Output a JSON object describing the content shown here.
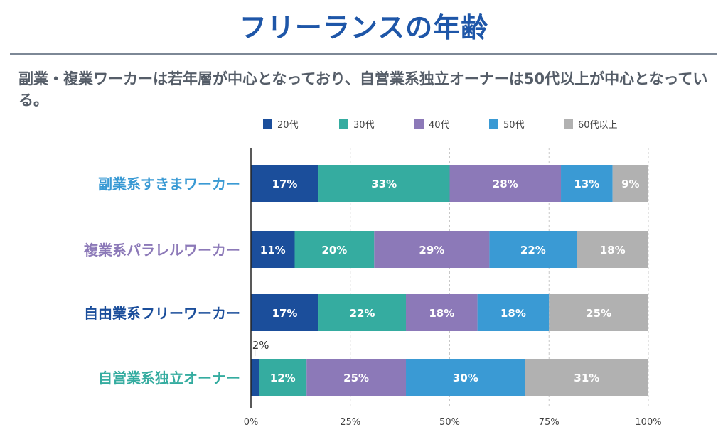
{
  "title": "フリーランスの年齢",
  "subtitle": "副業・複業ワーカーは若年層が中心となっており、自営業系独立オーナーは50代以上が中心となっている。",
  "chart_data": {
    "type": "bar",
    "orientation": "horizontal",
    "stacked": true,
    "categories": [
      "副業系すきまワーカー",
      "複業系パラレルワーカー",
      "自由業系フリーワーカー",
      "自営業系独立オーナー"
    ],
    "category_colors": [
      "#3a9ad4",
      "#8c79b8",
      "#1b4e9b",
      "#35aca0"
    ],
    "series": [
      {
        "name": "20代",
        "color": "#1b4e9b",
        "values": [
          17,
          11,
          17,
          2
        ],
        "labels": [
          "17%",
          "11%",
          "17%",
          "2%"
        ]
      },
      {
        "name": "30代",
        "color": "#35aca0",
        "values": [
          33,
          20,
          22,
          12
        ],
        "labels": [
          "33%",
          "20%",
          "22%",
          "12%"
        ]
      },
      {
        "name": "40代",
        "color": "#8c79b8",
        "values": [
          28,
          29,
          18,
          25
        ],
        "labels": [
          "28%",
          "29%",
          "18%",
          "25%"
        ]
      },
      {
        "name": "50代",
        "color": "#3a9ad4",
        "values": [
          13,
          22,
          18,
          30
        ],
        "labels": [
          "13%",
          "22%",
          "18%",
          "30%"
        ]
      },
      {
        "name": "60代以上",
        "color": "#b1b1b1",
        "values": [
          9,
          18,
          25,
          31
        ],
        "labels": [
          "9%",
          "18%",
          "25%",
          "31%"
        ]
      }
    ],
    "xlim": [
      0,
      100
    ],
    "xticks": [
      0,
      25,
      50,
      75,
      100
    ],
    "xtick_labels": [
      "0%",
      "25%",
      "50%",
      "75%",
      "100%"
    ],
    "grid": "vertical dashed",
    "legend": "top"
  }
}
